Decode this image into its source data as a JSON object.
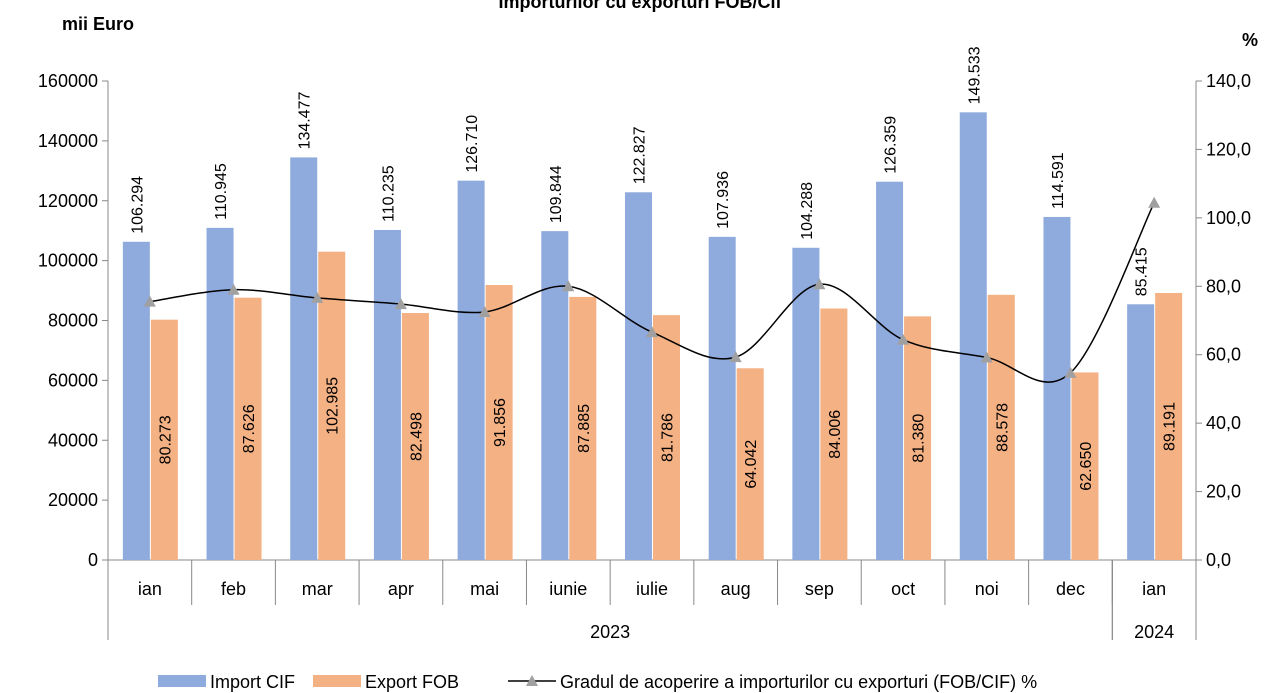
{
  "chart_data": {
    "type": "bar",
    "title": "Importurilor cu exporturi FOB/Cif",
    "y_label": "mii Euro",
    "y2_label": "%",
    "categories": [
      "ian",
      "feb",
      "mar",
      "apr",
      "mai",
      "iunie",
      "iulie",
      "aug",
      "sep",
      "oct",
      "noi",
      "dec",
      "ian"
    ],
    "groups": [
      {
        "label": "2023",
        "span": 12
      },
      {
        "label": "2024",
        "span": 1
      }
    ],
    "series": [
      {
        "name": "Import CIF",
        "color": "#8faadc",
        "values": [
          106294,
          110945,
          134477,
          110235,
          126710,
          109844,
          122827,
          107936,
          104288,
          126359,
          149533,
          114591,
          85415
        ],
        "value_labels": [
          "106.294",
          "110.945",
          "134.477",
          "110.235",
          "126.710",
          "109.844",
          "122.827",
          "107.936",
          "104.288",
          "126.359",
          "149.533",
          "114.591",
          "85.415"
        ]
      },
      {
        "name": "Export FOB",
        "color": "#f4b183",
        "values": [
          80273,
          87626,
          102985,
          82498,
          91856,
          87885,
          81786,
          64042,
          84006,
          81380,
          88578,
          62650,
          89191
        ],
        "value_labels": [
          "80.273",
          "87.626",
          "102.985",
          "82.498",
          "91.856",
          "87.885",
          "81.786",
          "64.042",
          "84.006",
          "81.380",
          "88.578",
          "62.650",
          "89.191"
        ]
      },
      {
        "name": "Gradul de acoperire a importurilor cu exporturi (FOB/CIF) %",
        "color": "#000000",
        "marker_color": "#a0a0a0",
        "axis": "y2",
        "type": "line",
        "values": [
          75.5,
          79.0,
          76.6,
          74.8,
          72.5,
          80.0,
          66.6,
          59.3,
          80.6,
          64.4,
          59.2,
          54.7,
          104.4
        ]
      }
    ],
    "ylim": [
      0,
      160000
    ],
    "yticks": [
      0,
      20000,
      40000,
      60000,
      80000,
      100000,
      120000,
      140000,
      160000
    ],
    "y2lim": [
      0,
      140
    ],
    "y2ticks": [
      {
        "value": 0,
        "label": "0,0"
      },
      {
        "value": 20,
        "label": "20,0"
      },
      {
        "value": 40,
        "label": "40,0"
      },
      {
        "value": 60,
        "label": "60,0"
      },
      {
        "value": 80,
        "label": "80,0"
      },
      {
        "value": 100,
        "label": "100,0"
      },
      {
        "value": 120,
        "label": "120,0"
      },
      {
        "value": 140,
        "label": "140,0"
      }
    ],
    "legend": "bottom"
  }
}
